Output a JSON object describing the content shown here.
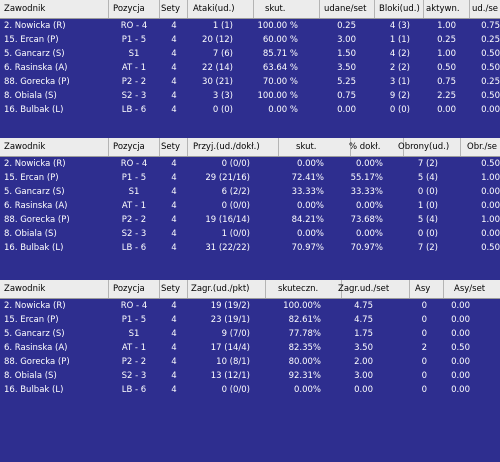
{
  "table1": {
    "headers": [
      "Zawodnik",
      "Pozycja",
      "Sety",
      "Ataki(ud.)",
      "skut.",
      "udane/set",
      "Bloki(ud.)",
      "aktywn.",
      "ud./se"
    ],
    "rows": [
      [
        "2. Nowicka (R)",
        "RO - 4",
        "4",
        "1 (1)",
        "100.00 %",
        "0.25",
        "4 (3)",
        "1.00",
        "0.75"
      ],
      [
        "15. Ercan (P)",
        "P1 - 5",
        "4",
        "20 (12)",
        "60.00 %",
        "3.00",
        "1 (1)",
        "0.25",
        "0.25"
      ],
      [
        "5. Gancarz (S)",
        "S1",
        "4",
        "7 (6)",
        "85.71 %",
        "1.50",
        "4 (2)",
        "1.00",
        "0.50"
      ],
      [
        "6. Rasinska (A)",
        "AT - 1",
        "4",
        "22 (14)",
        "63.64 %",
        "3.50",
        "2 (2)",
        "0.50",
        "0.50"
      ],
      [
        "88. Gorecka (P)",
        "P2 - 2",
        "4",
        "30 (21)",
        "70.00 %",
        "5.25",
        "3 (1)",
        "0.75",
        "0.25"
      ],
      [
        "8. Obiala (S)",
        "S2 - 3",
        "4",
        "3 (3)",
        "100.00 %",
        "0.75",
        "9 (2)",
        "2.25",
        "0.50"
      ],
      [
        "16. Bulbak (L)",
        "LB - 6",
        "4",
        "0 (0)",
        "0.00 %",
        "0.00",
        "0 (0)",
        "0.00",
        "0.00"
      ]
    ]
  },
  "table2": {
    "headers": [
      "Zawodnik",
      "Pozycja",
      "Sety",
      "Przyj.(ud./dokł.)",
      "skut.",
      "% dokł.",
      "Obrony(ud.)",
      "Obr./se"
    ],
    "rows": [
      [
        "2. Nowicka (R)",
        "RO - 4",
        "4",
        "0 (0/0)",
        "0.00%",
        "0.00%",
        "7 (2)",
        "0.50"
      ],
      [
        "15. Ercan (P)",
        "P1 - 5",
        "4",
        "29 (21/16)",
        "72.41%",
        "55.17%",
        "5 (4)",
        "1.00"
      ],
      [
        "5. Gancarz (S)",
        "S1",
        "4",
        "6 (2/2)",
        "33.33%",
        "33.33%",
        "0 (0)",
        "0.00"
      ],
      [
        "6. Rasinska (A)",
        "AT - 1",
        "4",
        "0 (0/0)",
        "0.00%",
        "0.00%",
        "1 (0)",
        "0.00"
      ],
      [
        "88. Gorecka (P)",
        "P2 - 2",
        "4",
        "19 (16/14)",
        "84.21%",
        "73.68%",
        "5 (4)",
        "1.00"
      ],
      [
        "8. Obiala (S)",
        "S2 - 3",
        "4",
        "1 (0/0)",
        "0.00%",
        "0.00%",
        "0 (0)",
        "0.00"
      ],
      [
        "16. Bulbak (L)",
        "LB - 6",
        "4",
        "31 (22/22)",
        "70.97%",
        "70.97%",
        "7 (2)",
        "0.50"
      ]
    ]
  },
  "table3": {
    "headers": [
      "Zawodnik",
      "Pozycja",
      "Sety",
      "Zagr.(ud./pkt)",
      "skuteczn.",
      "Zagr.ud./set",
      "Asy",
      "Asy/set"
    ],
    "rows": [
      [
        "2. Nowicka (R)",
        "RO - 4",
        "4",
        "19 (19/2)",
        "100.00%",
        "4.75",
        "0",
        "0.00"
      ],
      [
        "15. Ercan (P)",
        "P1 - 5",
        "4",
        "23 (19/1)",
        "82.61%",
        "4.75",
        "0",
        "0.00"
      ],
      [
        "5. Gancarz (S)",
        "S1",
        "4",
        "9 (7/0)",
        "77.78%",
        "1.75",
        "0",
        "0.00"
      ],
      [
        "6. Rasinska (A)",
        "AT - 1",
        "4",
        "17 (14/4)",
        "82.35%",
        "3.50",
        "2",
        "0.50"
      ],
      [
        "88. Gorecka (P)",
        "P2 - 2",
        "4",
        "10 (8/1)",
        "80.00%",
        "2.00",
        "0",
        "0.00"
      ],
      [
        "8. Obiala (S)",
        "S2 - 3",
        "4",
        "13 (12/1)",
        "92.31%",
        "3.00",
        "0",
        "0.00"
      ],
      [
        "16. Bulbak (L)",
        "LB - 6",
        "4",
        "0 (0/0)",
        "0.00%",
        "0.00",
        "0",
        "0.00"
      ]
    ]
  }
}
